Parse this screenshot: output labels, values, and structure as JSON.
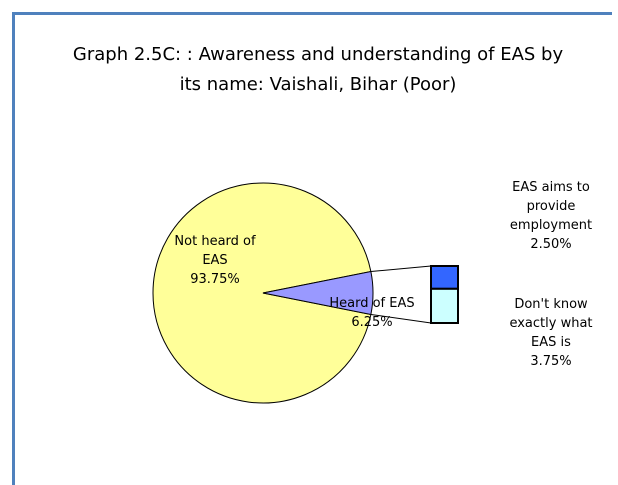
{
  "chart_data": {
    "type": "pie",
    "title": "Graph 2.5C: : Awareness and understanding of EAS by its name: Vaishali, Bihar (Poor)",
    "categories": [
      "Not heard of EAS",
      "Heard of EAS"
    ],
    "values": [
      93.75,
      6.25
    ],
    "value_labels": [
      "93.75%",
      "6.25%"
    ],
    "colors": [
      "#ffff99",
      "#9999ff"
    ],
    "secondary": {
      "categories": [
        "EAS aims to provide employment",
        "Don't know exactly what EAS is"
      ],
      "values": [
        2.5,
        3.75
      ],
      "value_labels": [
        "2.50%",
        "3.75%"
      ],
      "colors": [
        "#3366ff",
        "#ccffff"
      ]
    }
  }
}
